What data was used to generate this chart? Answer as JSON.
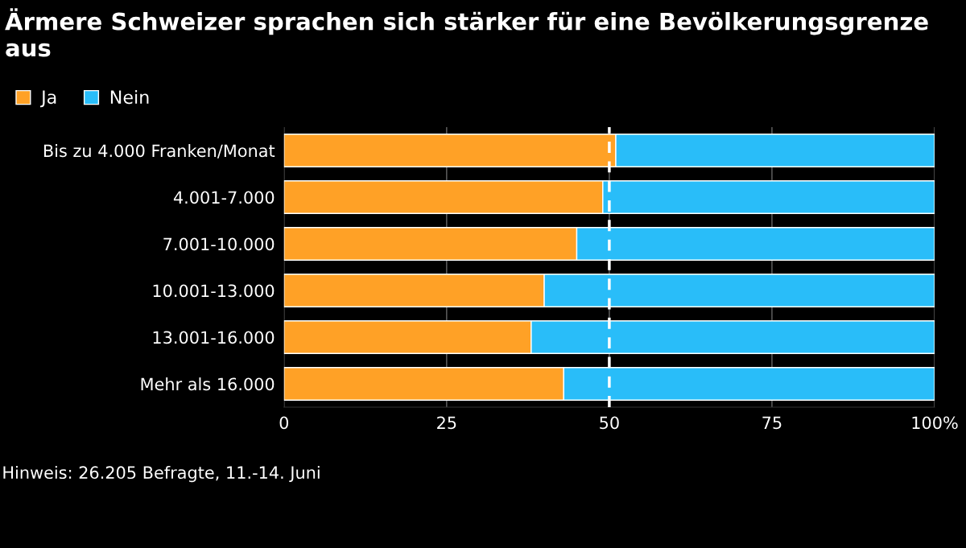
{
  "chart_data": {
    "type": "bar",
    "orientation": "horizontal",
    "stacked": true,
    "title": "Ärmere Schweizer sprachen sich stärker für eine Bevölkerungsgrenze aus",
    "categories": [
      "Bis zu 4.000 Franken/Monat",
      "4.001-7.000",
      "7.001-10.000",
      "10.001-13.000",
      "13.001-16.000",
      "Mehr als 16.000"
    ],
    "series": [
      {
        "name": "Ja",
        "color": "#ffa126",
        "values": [
          51,
          49,
          45,
          40,
          38,
          43
        ]
      },
      {
        "name": "Nein",
        "color": "#29bdf9",
        "values": [
          49,
          51,
          55,
          60,
          62,
          57
        ]
      }
    ],
    "xlim": [
      0,
      100
    ],
    "xticks": [
      0,
      25,
      50,
      75,
      {
        "value": 100,
        "label": "100%"
      }
    ],
    "grid": "x",
    "legend": "top left",
    "ref_lines": [
      {
        "axis": "x",
        "value": 50,
        "color": "#ffffff",
        "line_style": "dashed"
      }
    ],
    "annotations": [
      "Hinweis: 26.205 Befragte, 11.-14. Juni"
    ]
  }
}
